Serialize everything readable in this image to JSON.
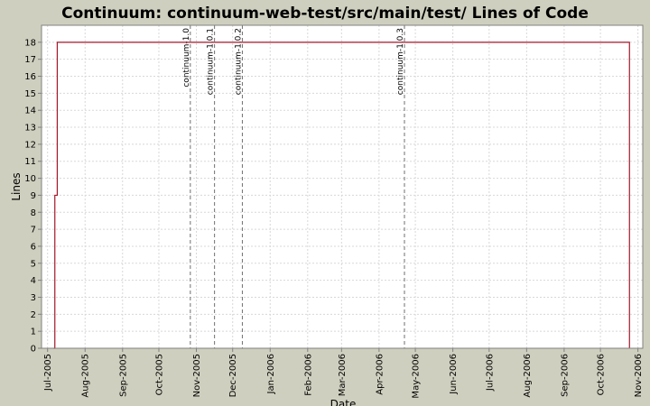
{
  "chart_data": {
    "type": "line",
    "title": "Continuum: continuum-web-test/src/main/test/ Lines of Code",
    "xlabel": "Date",
    "ylabel": "Lines",
    "x_axis_type": "date",
    "xlim": [
      "2005-06-26",
      "2006-11-05"
    ],
    "ylim": [
      0,
      19
    ],
    "grid": true,
    "x_ticks": [
      {
        "date": "2005-07-01",
        "label": "Jul-2005"
      },
      {
        "date": "2005-08-01",
        "label": "Aug-2005"
      },
      {
        "date": "2005-09-01",
        "label": "Sep-2005"
      },
      {
        "date": "2005-10-01",
        "label": "Oct-2005"
      },
      {
        "date": "2005-11-01",
        "label": "Nov-2005"
      },
      {
        "date": "2005-12-01",
        "label": "Dec-2005"
      },
      {
        "date": "2006-01-01",
        "label": "Jan-2006"
      },
      {
        "date": "2006-02-01",
        "label": "Feb-2006"
      },
      {
        "date": "2006-03-01",
        "label": "Mar-2006"
      },
      {
        "date": "2006-04-01",
        "label": "Apr-2006"
      },
      {
        "date": "2006-05-01",
        "label": "May-2006"
      },
      {
        "date": "2006-06-01",
        "label": "Jun-2006"
      },
      {
        "date": "2006-07-01",
        "label": "Jul-2006"
      },
      {
        "date": "2006-08-01",
        "label": "Aug-2006"
      },
      {
        "date": "2006-09-01",
        "label": "Sep-2006"
      },
      {
        "date": "2006-10-01",
        "label": "Oct-2006"
      },
      {
        "date": "2006-11-01",
        "label": "Nov-2006"
      }
    ],
    "y_ticks": [
      0,
      1,
      2,
      3,
      4,
      5,
      6,
      7,
      8,
      9,
      10,
      11,
      12,
      13,
      14,
      15,
      16,
      17,
      18
    ],
    "series": [
      {
        "color": "#a0182a",
        "step": true,
        "points": [
          {
            "x": "2005-07-06",
            "y": 0
          },
          {
            "x": "2005-07-07",
            "y": 9
          },
          {
            "x": "2005-07-09",
            "y": 18
          },
          {
            "x": "2006-10-24",
            "y": 18
          },
          {
            "x": "2006-10-25",
            "y": 0
          }
        ]
      }
    ],
    "markers": [
      {
        "label": "continuum-1.0",
        "date": "2005-10-27"
      },
      {
        "label": "continuum-1.0.1",
        "date": "2005-11-16"
      },
      {
        "label": "continuum-1.0.2",
        "date": "2005-12-09"
      },
      {
        "label": "continuum-1.0.3",
        "date": "2006-04-22"
      }
    ]
  }
}
